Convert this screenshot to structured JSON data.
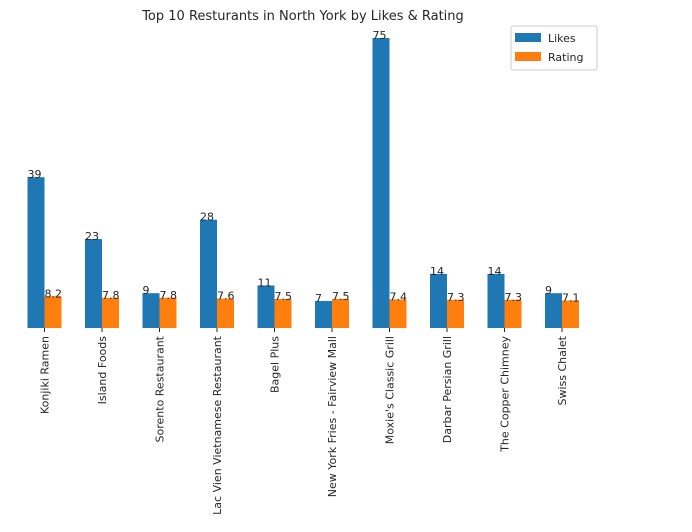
{
  "chart_data": {
    "type": "bar",
    "title": "Top 10 Resturants in North York by Likes & Rating",
    "xlabel": "",
    "ylabel": "",
    "ylim": [
      0,
      75
    ],
    "grid": false,
    "legend_position": "top-right",
    "categories": [
      "Konjiki Ramen",
      "Island Foods",
      "Sorento Restaurant",
      "Lac Vien Vietnamese Restaurant",
      "Bagel Plus",
      "New York Fries - Fairview Mall",
      "Moxie's Classic Grill",
      "Darbar Persian Grill",
      "The Copper Chimney",
      "Swiss Chalet"
    ],
    "series": [
      {
        "name": "Likes",
        "color": "#1f77b4",
        "values": [
          39,
          23,
          9,
          28,
          11,
          7,
          75,
          14,
          14,
          9
        ],
        "labels": [
          "39",
          "23",
          "9",
          "28",
          "11",
          "7",
          "75",
          "14",
          "14",
          "9"
        ]
      },
      {
        "name": "Rating",
        "color": "#ff7f0e",
        "values": [
          8.2,
          7.8,
          7.8,
          7.6,
          7.5,
          7.5,
          7.4,
          7.3,
          7.3,
          7.1
        ],
        "labels": [
          "8.2",
          "7.8",
          "7.8",
          "7.6",
          "7.5",
          "7.5",
          "7.4",
          "7.3",
          "7.3",
          "7.1"
        ]
      }
    ]
  }
}
